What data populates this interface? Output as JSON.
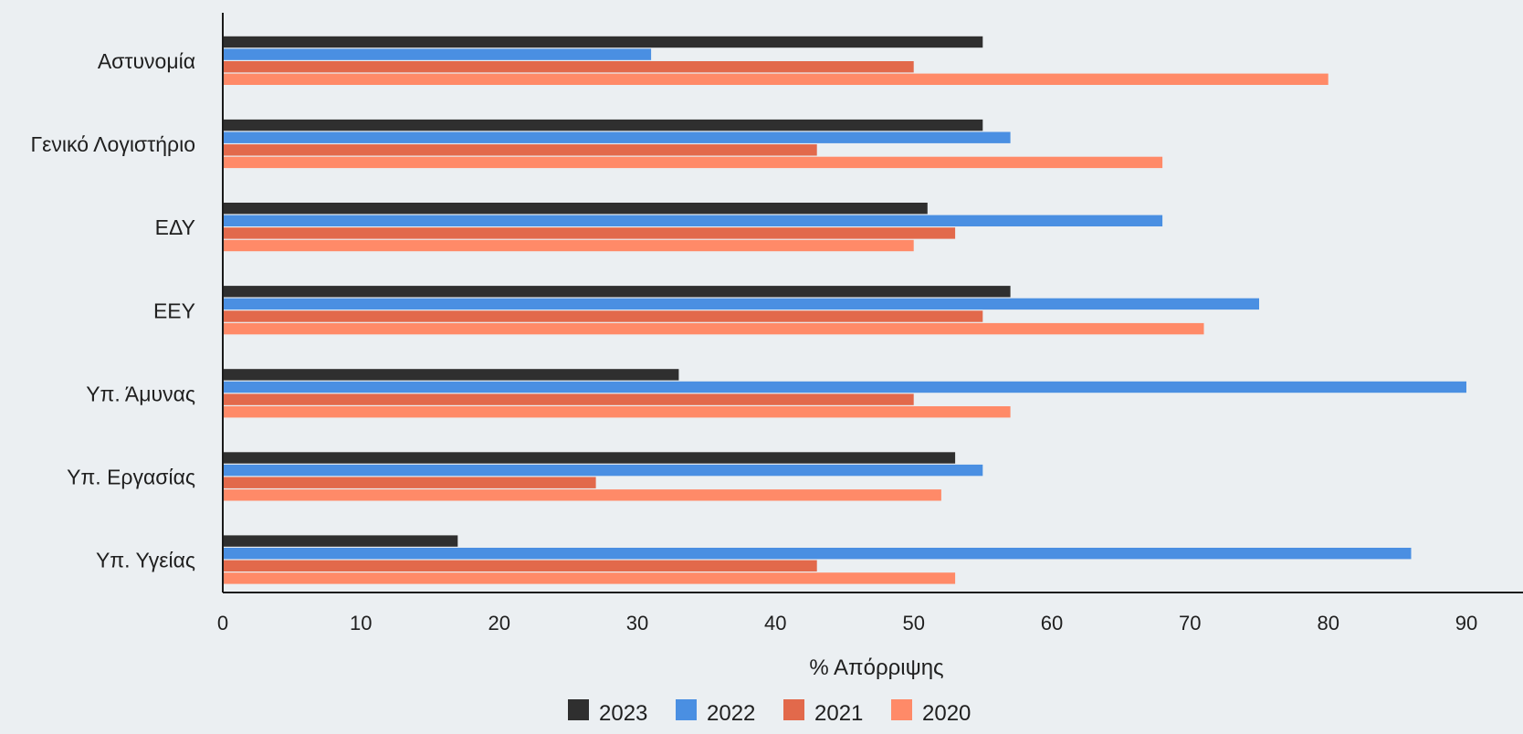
{
  "chart_data": {
    "type": "bar",
    "orientation": "horizontal",
    "categories": [
      "Αστυνομία",
      "Γενικό Λογιστήριο",
      "ΕΔΥ",
      "ΕΕΥ",
      "Υπ. Άμυνας",
      "Υπ. Εργασίας",
      "Υπ. Υγείας"
    ],
    "series": [
      {
        "name": "2023",
        "color": "#2f2f2f",
        "values": [
          55,
          55,
          51,
          57,
          33,
          53,
          17
        ]
      },
      {
        "name": "2022",
        "color": "#4a8fe2",
        "values": [
          31,
          57,
          68,
          75,
          90,
          55,
          86
        ]
      },
      {
        "name": "2021",
        "color": "#e2694b",
        "values": [
          50,
          43,
          53,
          55,
          50,
          27,
          43
        ]
      },
      {
        "name": "2020",
        "color": "#ff8a68",
        "values": [
          80,
          68,
          50,
          71,
          57,
          52,
          53
        ]
      }
    ],
    "xlabel": "% Απόρριψης",
    "ylabel": "",
    "xlim": [
      0,
      90
    ],
    "xticks": [
      0,
      10,
      20,
      30,
      40,
      50,
      60,
      70,
      80,
      90
    ],
    "grid": false,
    "legend_position": "bottom-center"
  }
}
